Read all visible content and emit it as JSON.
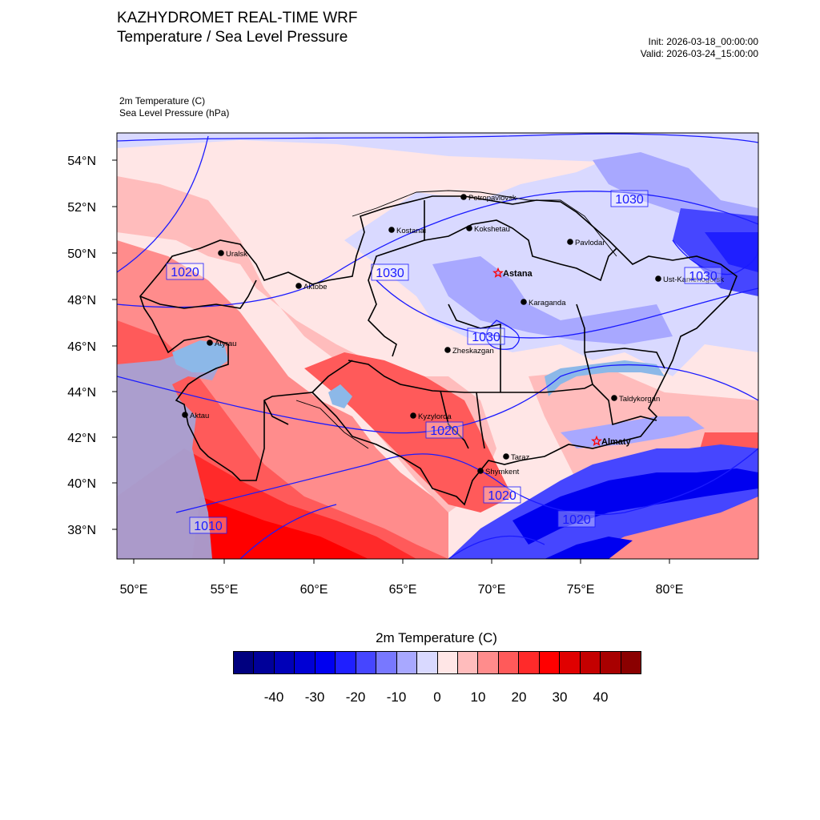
{
  "header": {
    "title_line1": "KAZHYDROMET REAL-TIME WRF",
    "title_line2": "Temperature / Sea Level Pressure",
    "init": "Init: 2026-03-18_00:00:00",
    "valid": "Valid: 2026-03-24_15:00:00"
  },
  "variables": {
    "var1": "2m Temperature   (C)",
    "var2": "Sea Level Pressure   (hPa)"
  },
  "map": {
    "lat_labels": [
      "54°N",
      "52°N",
      "50°N",
      "48°N",
      "46°N",
      "44°N",
      "42°N",
      "40°N",
      "38°N"
    ],
    "lon_labels": [
      "50°E",
      "55°E",
      "60°E",
      "65°E",
      "70°E",
      "75°E",
      "80°E"
    ],
    "cities": [
      {
        "name": "Petropavlovsk"
      },
      {
        "name": "Kostanai"
      },
      {
        "name": "Kokshetau"
      },
      {
        "name": "Pavlodar"
      },
      {
        "name": "Uralsk"
      },
      {
        "name": "Aktobe"
      },
      {
        "name": "Astana",
        "capital": true
      },
      {
        "name": "Karaganda"
      },
      {
        "name": "Ust-Kamenogorsk"
      },
      {
        "name": "Atyrau"
      },
      {
        "name": "Zheskazgan"
      },
      {
        "name": "Aktau"
      },
      {
        "name": "Kyzylorda"
      },
      {
        "name": "Taldykorgan"
      },
      {
        "name": "Almaty",
        "capital": true
      },
      {
        "name": "Taraz"
      },
      {
        "name": "Shymkent"
      }
    ],
    "isobar_labels": [
      "1030",
      "1020",
      "1030",
      "1030",
      "1030",
      "1020",
      "1020",
      "1020",
      "1010"
    ],
    "colors": {
      "isobar": "#1a1aff",
      "border": "#000000"
    }
  },
  "colorbar": {
    "title": "2m Temperature  (C)",
    "colors": [
      "#00007f",
      "#000099",
      "#0000b8",
      "#0000d4",
      "#0000f0",
      "#1f1fff",
      "#4646ff",
      "#7878ff",
      "#a8a8ff",
      "#d9d9ff",
      "#ffe6e6",
      "#ffbcbc",
      "#ff8c8c",
      "#ff5a5a",
      "#ff2a2a",
      "#ff0000",
      "#e00000",
      "#c40000",
      "#a80000",
      "#8a0000"
    ],
    "labels": [
      "-40",
      "-30",
      "-20",
      "-10",
      "0",
      "10",
      "20",
      "30",
      "40"
    ]
  }
}
